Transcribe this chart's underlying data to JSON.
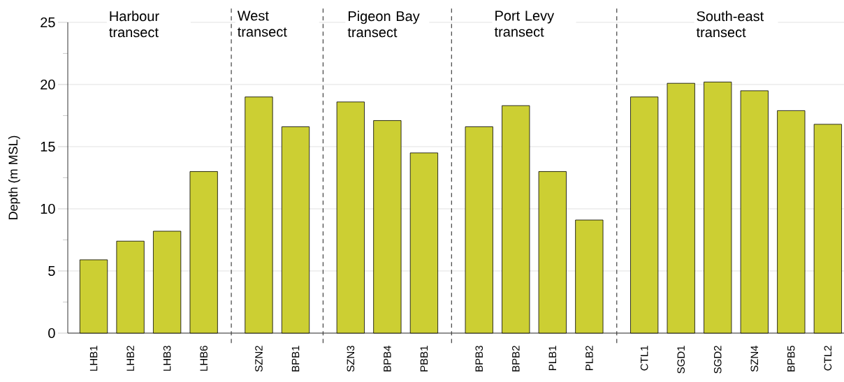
{
  "chart_data": {
    "type": "bar",
    "ylabel": "Depth (m MSL)",
    "categories": [
      "LHB1",
      "LHB2",
      "LHB3",
      "LHB6",
      "SZN2",
      "BPB1",
      "SZN3",
      "BPB4",
      "PBB1",
      "BPB3",
      "BPB2",
      "PLB1",
      "PLB2",
      "CTL1",
      "SGD1",
      "SGD2",
      "SZN4",
      "BPB5",
      "CTL2"
    ],
    "values": [
      5.9,
      7.4,
      8.2,
      13.0,
      19.0,
      16.6,
      18.6,
      17.1,
      14.5,
      16.6,
      18.3,
      13.0,
      9.1,
      19.0,
      20.1,
      20.2,
      19.5,
      17.9,
      16.8
    ],
    "color": "#cccf33",
    "ylim": [
      0,
      25
    ],
    "yticks": [
      0,
      {
        "value": 2.5,
        "label": null
      },
      5,
      {
        "value": 7.5,
        "label": null
      },
      10,
      {
        "value": 12.5,
        "label": null
      },
      15,
      {
        "value": 17.5,
        "label": null
      },
      20,
      {
        "value": 22.5,
        "label": null
      },
      25
    ],
    "grid": "y",
    "annotations": [
      "Harbour transect",
      "West transect",
      "Pigeon Bay transect",
      "Port Levy transect",
      "South-east transect"
    ]
  }
}
